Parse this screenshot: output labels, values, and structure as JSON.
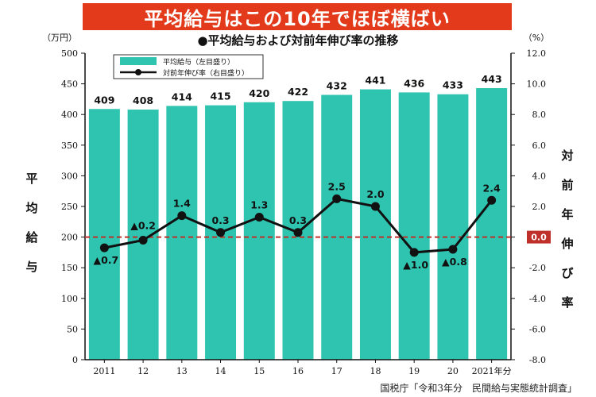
{
  "banner": {
    "title": "平均給与はこの10年でほぼ横ばい",
    "color": "#e23a1a"
  },
  "chart_data": {
    "type": "bar+line",
    "title": "●平均給与および対前年伸び率の推移",
    "categories": [
      "2011",
      "12",
      "13",
      "14",
      "15",
      "16",
      "17",
      "18",
      "19",
      "20",
      "2021年分"
    ],
    "series": [
      {
        "name": "平均給与（左目盛り）",
        "type": "bar",
        "color": "#2ec4b0",
        "values": [
          409,
          408,
          414,
          415,
          420,
          422,
          432,
          441,
          436,
          433,
          443
        ],
        "labels": [
          "409",
          "408",
          "414",
          "415",
          "420",
          "422",
          "432",
          "441",
          "436",
          "433",
          "443"
        ]
      },
      {
        "name": "対前年伸び率（右目盛り）",
        "type": "line",
        "color": "#111111",
        "values": [
          -0.7,
          -0.2,
          1.4,
          0.3,
          1.3,
          0.3,
          2.5,
          2.0,
          -1.0,
          -0.8,
          2.4
        ],
        "labels": [
          "▲0.7",
          "▲0.2",
          "1.4",
          "0.3",
          "1.3",
          "0.3",
          "2.5",
          "2.0",
          "▲1.0",
          "▲0.8",
          "2.4"
        ]
      }
    ],
    "y_left": {
      "unit": "（万円）",
      "label": "平均給与",
      "ylim": [
        0,
        500
      ],
      "ticks": [
        0,
        50,
        100,
        150,
        200,
        250,
        300,
        350,
        400,
        450,
        500
      ],
      "tick_labels": [
        "0",
        "50",
        "100",
        "150",
        "200",
        "250",
        "300",
        "350",
        "400",
        "450",
        "500"
      ]
    },
    "y_right": {
      "unit": "（%）",
      "label": "対前年伸び率",
      "ylim": [
        -8,
        12
      ],
      "ticks": [
        -8,
        -6,
        -4,
        -2,
        0,
        2,
        4,
        6,
        8,
        10,
        12
      ],
      "tick_labels": [
        "-8.0",
        "-6.0",
        "-4.0",
        "-2.0",
        "0.0",
        "2.0",
        "4.0",
        "6.0",
        "8.0",
        "10.0",
        "12.0"
      ]
    },
    "reference_line": {
      "value": 0,
      "axis": "right",
      "label": "0.0",
      "color": "#c0302a",
      "style": "dashed"
    },
    "legend": {
      "placement": "top-left",
      "items": [
        "平均給与（左目盛り）",
        "対前年伸び率（右目盛り）"
      ]
    },
    "grid": false
  },
  "axis_titles": {
    "left": [
      "平",
      "均",
      "給",
      "与"
    ],
    "right": [
      "対",
      "前",
      "年",
      "伸",
      "び",
      "率"
    ]
  },
  "source": "国税庁「令和3年分　民間給与実態統計調査」"
}
